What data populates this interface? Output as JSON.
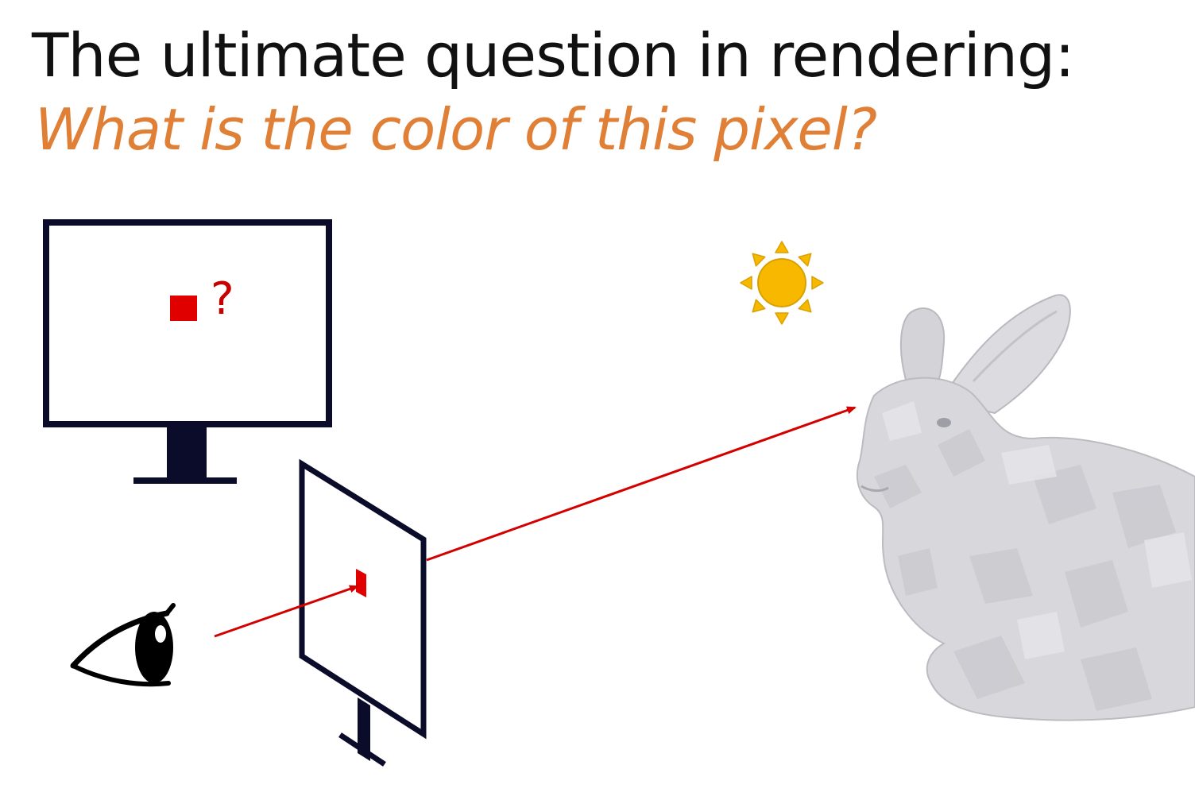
{
  "slide": {
    "title": "The ultimate question in rendering:",
    "subtitle": "What is the color of this pixel?"
  },
  "monitor": {
    "question_mark": "?"
  },
  "colors": {
    "accent": "#E07F36",
    "pixel": "#E00000",
    "ray": "#D40000",
    "frame": "#0B0B2A",
    "sun": "#F9B800",
    "sun_stroke": "#D9A100",
    "bunny": "#D8D8DC"
  },
  "icons": {
    "eye": "eye-icon",
    "sun": "sun-icon",
    "monitor": "monitor-icon",
    "screen": "image-plane",
    "bunny": "bunny-model"
  }
}
